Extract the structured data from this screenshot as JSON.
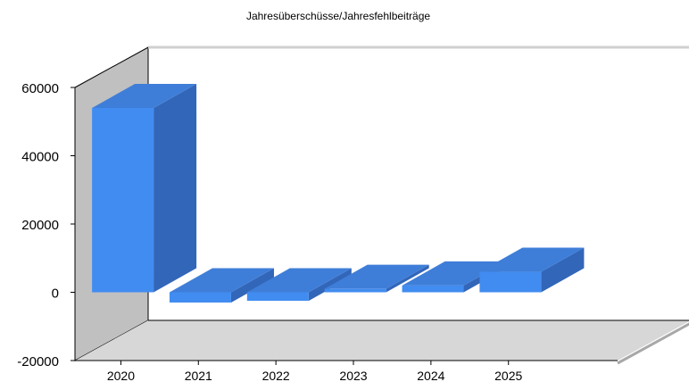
{
  "chart_data": {
    "type": "bar",
    "title": "Jahresüberschüsse/Jahresfehlbeiträge",
    "xlabel": "",
    "ylabel": "",
    "categories": [
      "2020",
      "2021",
      "2022",
      "2023",
      "2024",
      "2025"
    ],
    "values": [
      54000,
      -3000,
      -2500,
      1000,
      2000,
      6000
    ],
    "ylim": [
      -20000,
      60000
    ],
    "yticks": [
      60000,
      40000,
      20000,
      0,
      -20000
    ],
    "grid": false,
    "legend": "none",
    "style": "3d",
    "colors": {
      "bar_front": "#418cf0",
      "bar_top": "#3f7ed8",
      "bar_side": "#3266b9",
      "back_wall": "#ffffff",
      "side_wall": "#c0c0c0",
      "floor": "#d7d7d7",
      "axis": "#000000",
      "text": "#000000"
    }
  }
}
